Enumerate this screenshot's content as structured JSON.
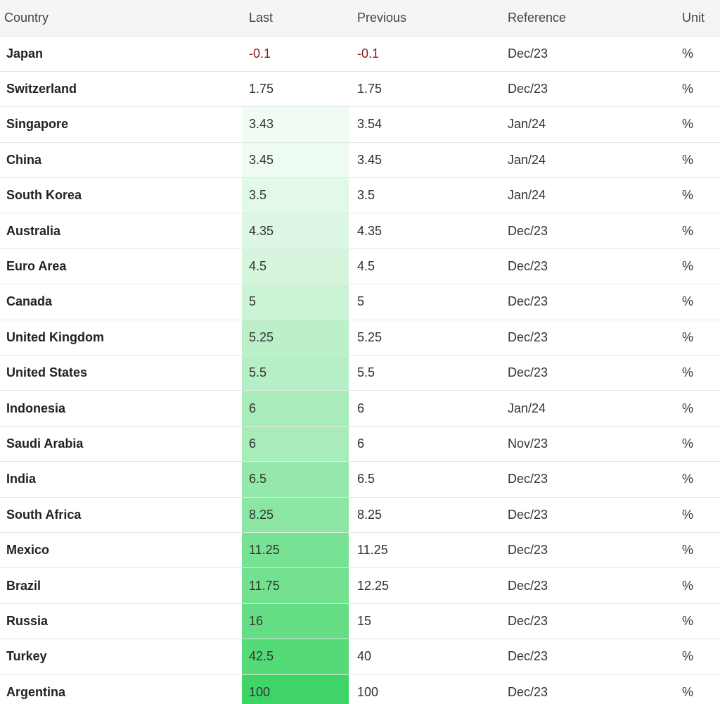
{
  "header": {
    "country": "Country",
    "last": "Last",
    "previous": "Previous",
    "reference": "Reference",
    "unit": "Unit"
  },
  "colors": {
    "negative_text": "#8b1a1a",
    "scale_low": "#ffffff",
    "scale_high": "#3ed566"
  },
  "rows": [
    {
      "country": "Japan",
      "last": "-0.1",
      "previous": "-0.1",
      "reference": "Dec/23",
      "unit": "%",
      "shade": 0.0
    },
    {
      "country": "Switzerland",
      "last": "1.75",
      "previous": "1.75",
      "reference": "Dec/23",
      "unit": "%",
      "shade": 0.0
    },
    {
      "country": "Singapore",
      "last": "3.43",
      "previous": "3.54",
      "reference": "Jan/24",
      "unit": "%",
      "shade": 0.08
    },
    {
      "country": "China",
      "last": "3.45",
      "previous": "3.45",
      "reference": "Jan/24",
      "unit": "%",
      "shade": 0.09
    },
    {
      "country": "South Korea",
      "last": "3.5",
      "previous": "3.5",
      "reference": "Jan/24",
      "unit": "%",
      "shade": 0.15
    },
    {
      "country": "Australia",
      "last": "4.35",
      "previous": "4.35",
      "reference": "Dec/23",
      "unit": "%",
      "shade": 0.18
    },
    {
      "country": "Euro Area",
      "last": "4.5",
      "previous": "4.5",
      "reference": "Dec/23",
      "unit": "%",
      "shade": 0.22
    },
    {
      "country": "Canada",
      "last": "5",
      "previous": "5",
      "reference": "Dec/23",
      "unit": "%",
      "shade": 0.27
    },
    {
      "country": "United Kingdom",
      "last": "5.25",
      "previous": "5.25",
      "reference": "Dec/23",
      "unit": "%",
      "shade": 0.35
    },
    {
      "country": "United States",
      "last": "5.5",
      "previous": "5.5",
      "reference": "Dec/23",
      "unit": "%",
      "shade": 0.38
    },
    {
      "country": "Indonesia",
      "last": "6",
      "previous": "6",
      "reference": "Jan/24",
      "unit": "%",
      "shade": 0.45
    },
    {
      "country": "Saudi Arabia",
      "last": "6",
      "previous": "6",
      "reference": "Nov/23",
      "unit": "%",
      "shade": 0.45
    },
    {
      "country": "India",
      "last": "6.5",
      "previous": "6.5",
      "reference": "Dec/23",
      "unit": "%",
      "shade": 0.55
    },
    {
      "country": "South Africa",
      "last": "8.25",
      "previous": "8.25",
      "reference": "Dec/23",
      "unit": "%",
      "shade": 0.6
    },
    {
      "country": "Mexico",
      "last": "11.25",
      "previous": "11.25",
      "reference": "Dec/23",
      "unit": "%",
      "shade": 0.7
    },
    {
      "country": "Brazil",
      "last": "11.75",
      "previous": "12.25",
      "reference": "Dec/23",
      "unit": "%",
      "shade": 0.72
    },
    {
      "country": "Russia",
      "last": "16",
      "previous": "15",
      "reference": "Dec/23",
      "unit": "%",
      "shade": 0.8
    },
    {
      "country": "Turkey",
      "last": "42.5",
      "previous": "40",
      "reference": "Dec/23",
      "unit": "%",
      "shade": 0.88
    },
    {
      "country": "Argentina",
      "last": "100",
      "previous": "100",
      "reference": "Dec/23",
      "unit": "%",
      "shade": 1.0
    }
  ]
}
